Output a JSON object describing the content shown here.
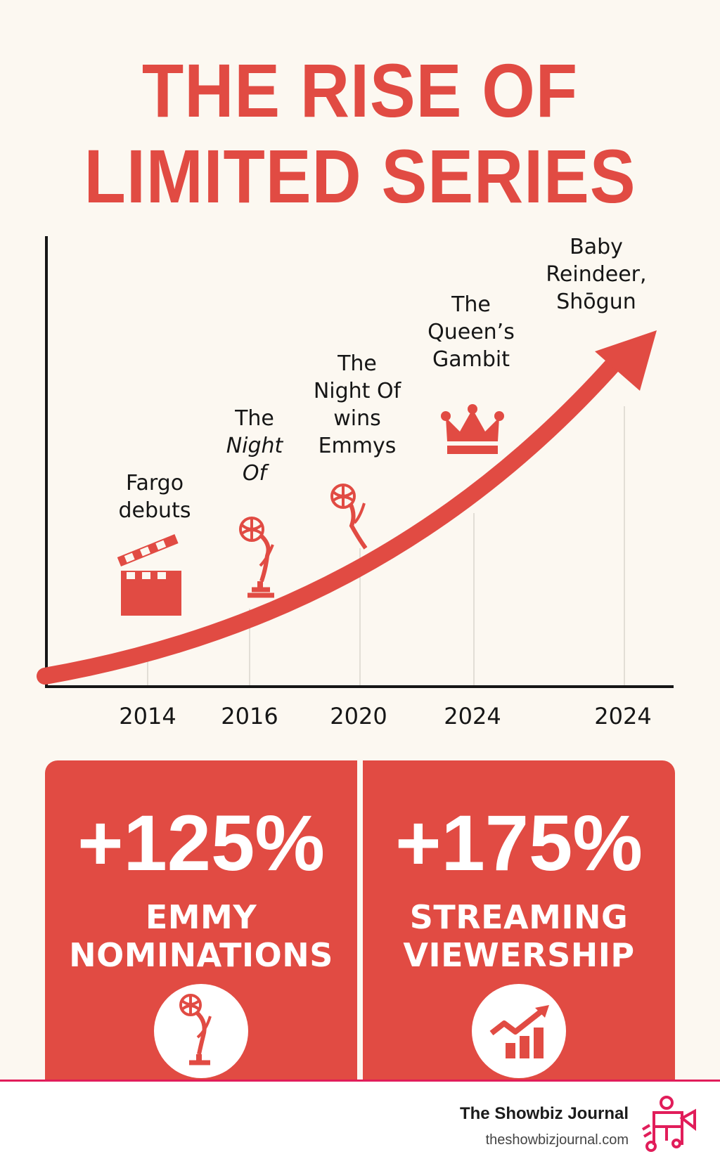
{
  "title": {
    "line1": "THE RISE OF",
    "line2": "LIMITED SERIES"
  },
  "timeline": {
    "milestones": [
      {
        "lines": [
          "Fargo",
          "debuts"
        ],
        "icon": "clapperboard-icon"
      },
      {
        "lines": [
          "The",
          "Night",
          "Of"
        ],
        "icon": "emmy-statuette-icon"
      },
      {
        "lines": [
          "The",
          "Night Of",
          "wins",
          "Emmys"
        ],
        "icon": "emmy-statuette-icon"
      },
      {
        "lines": [
          "The",
          "Queen’s",
          "Gambit"
        ],
        "icon": "crown-icon"
      },
      {
        "lines": [
          "Baby",
          "Reindeer,",
          "Shōgun"
        ],
        "icon": ""
      }
    ],
    "years": [
      "2014",
      "2016",
      "2020",
      "2024",
      "2024"
    ]
  },
  "stats": [
    {
      "value": "+125%",
      "label_line1": "EMMY",
      "label_line2": "NOMINATIONS",
      "icon": "emmy-statuette-icon"
    },
    {
      "value": "+175%",
      "label_line1": "STREAMING",
      "label_line2": "VIEWERSHIP",
      "icon": "growth-chart-icon"
    }
  ],
  "footer": {
    "brand": "The Showbiz Journal",
    "url": "theshowbizjournal.com",
    "logo_icon": "showbiz-logo-icon"
  },
  "colors": {
    "accent": "#e14b43",
    "background": "#fcf8f1",
    "footer_rule": "#e11d5a"
  }
}
